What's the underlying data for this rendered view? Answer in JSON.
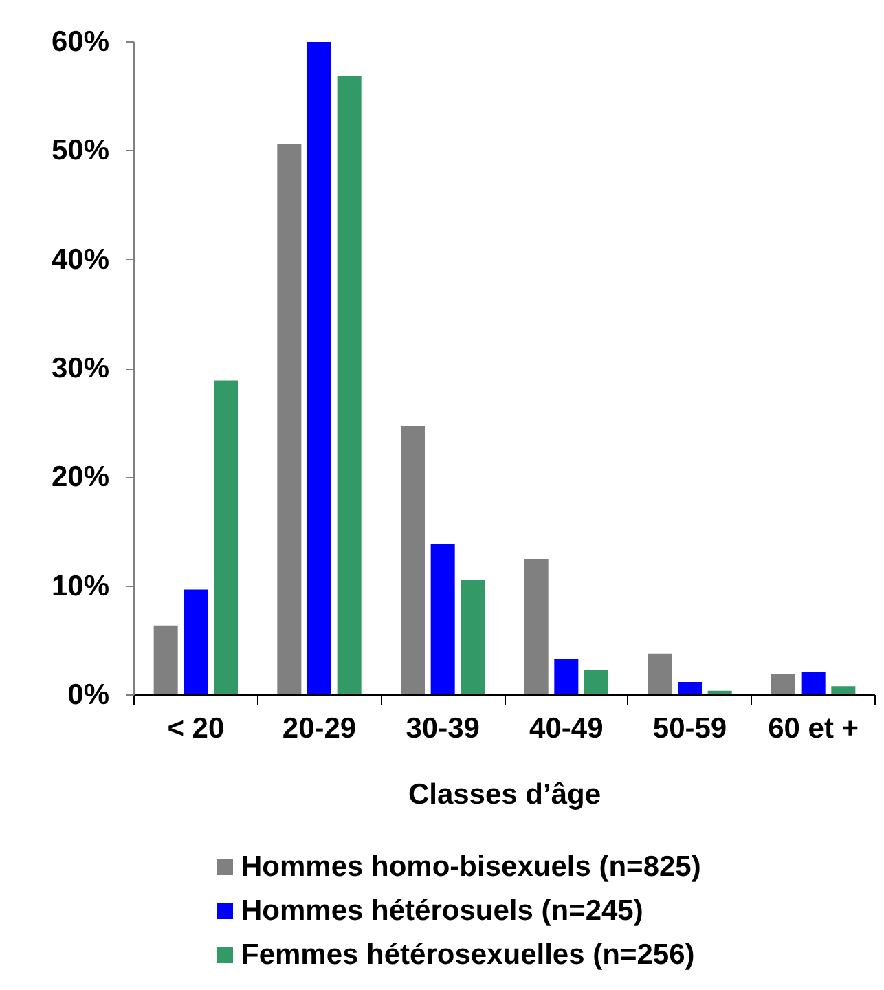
{
  "chart_data": {
    "type": "bar",
    "xlabel": "Classes d’âge",
    "categories": [
      "< 20",
      "20-29",
      "30-39",
      "40-49",
      "50-59",
      "60 et +"
    ],
    "series": [
      {
        "name": "Hommes homo-bisexuels (n=825)",
        "color": "#808080",
        "values": [
          6.4,
          50.6,
          24.7,
          12.5,
          3.8,
          1.9
        ]
      },
      {
        "name": "Hommes hétérosuels (n=245)",
        "color": "#0000ff",
        "values": [
          9.7,
          60,
          13.9,
          3.3,
          1.2,
          2.1
        ]
      },
      {
        "name": "Femmes hétérosexuelles (n=256)",
        "color": "#339966",
        "values": [
          28.9,
          56.9,
          10.6,
          2.3,
          0.4,
          0.8
        ]
      }
    ],
    "ylim": [
      0,
      60
    ],
    "yticks": [
      {
        "value": 0,
        "label": "0%"
      },
      {
        "value": 10,
        "label": "10%"
      },
      {
        "value": 20,
        "label": "20%"
      },
      {
        "value": 30,
        "label": "30%"
      },
      {
        "value": 40,
        "label": "40%"
      },
      {
        "value": 50,
        "label": "50%"
      },
      {
        "value": 60,
        "label": "60%"
      }
    ],
    "legend": "bottom"
  }
}
